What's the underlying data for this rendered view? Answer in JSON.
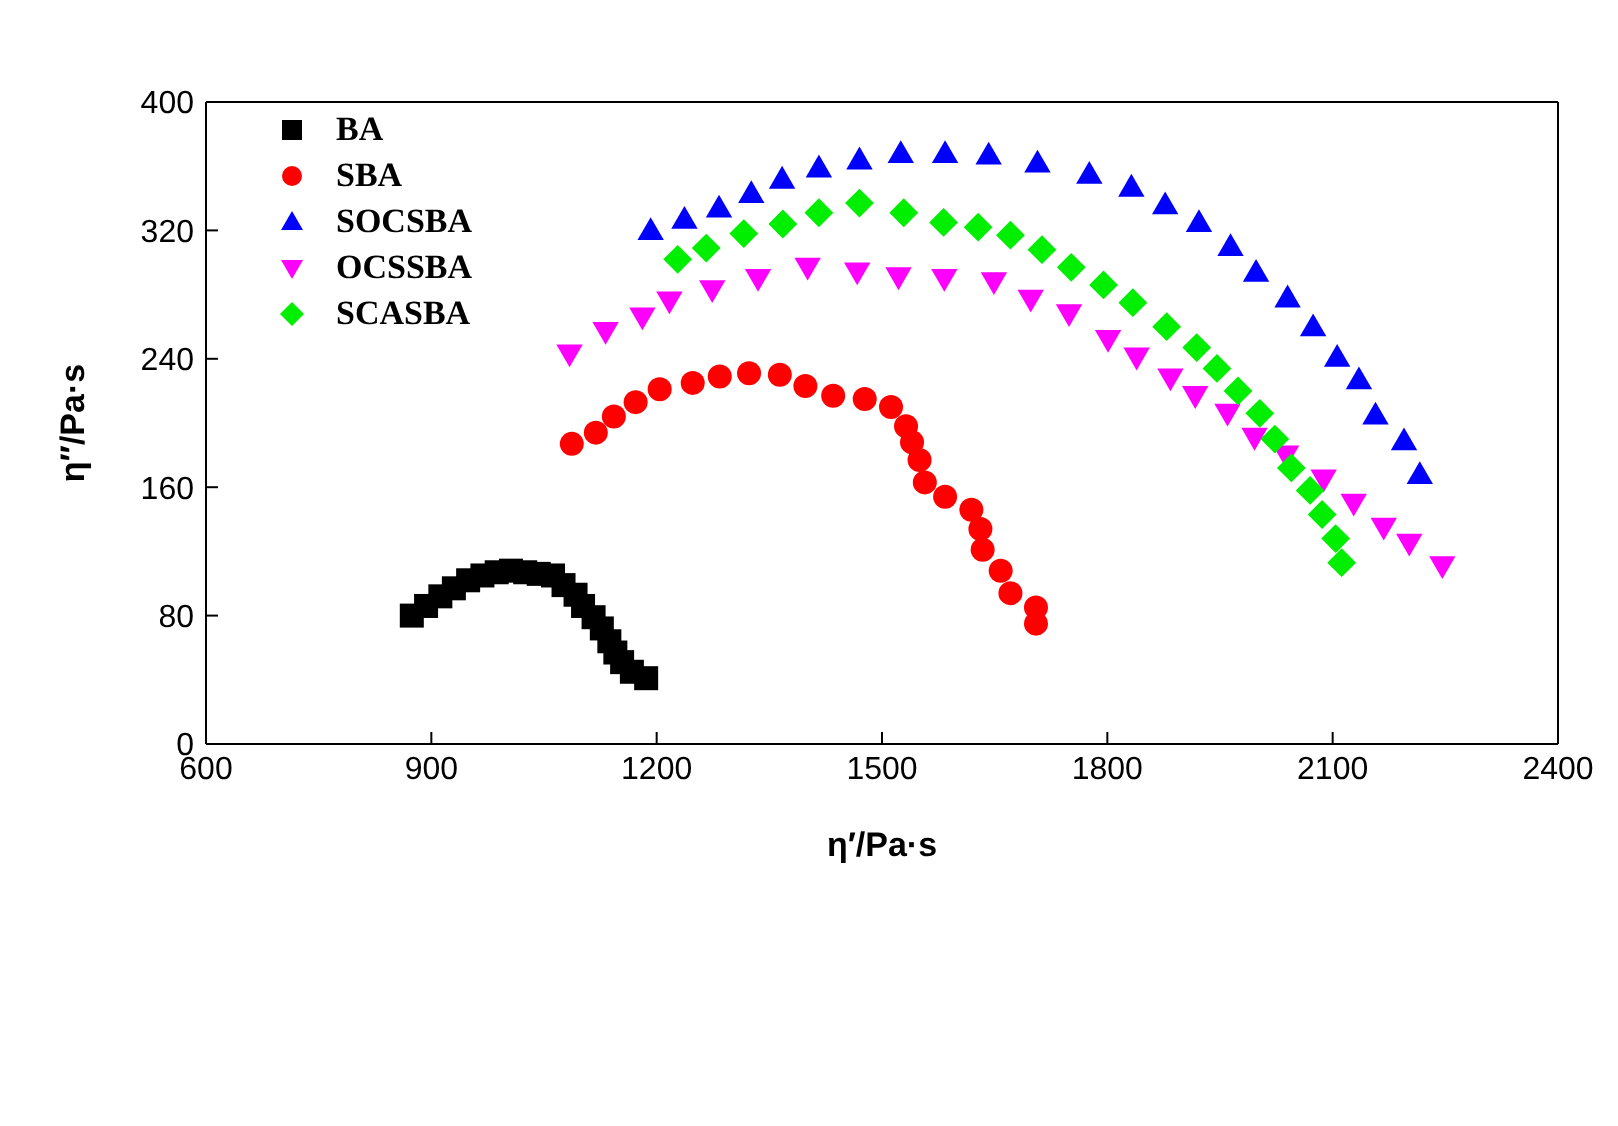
{
  "chart_data": {
    "type": "scatter",
    "xlabel": "η′/Pa·s",
    "ylabel": "η″/Pa·s",
    "xlim": [
      600,
      2400
    ],
    "xticks": [
      600,
      900,
      1200,
      1500,
      1800,
      2100,
      2400
    ],
    "ylim": [
      0,
      400
    ],
    "yticks": [
      0,
      80,
      160,
      240,
      320,
      400
    ],
    "legend": "top left",
    "series": [
      {
        "name": "BA",
        "color": "#000000",
        "marker": "square",
        "x": [
          874,
          893,
          912,
          930,
          949,
          968,
          987,
          1006,
          1025,
          1043,
          1062,
          1076,
          1092,
          1102,
          1116,
          1127,
          1137,
          1145,
          1154,
          1167,
          1186
        ],
        "values": [
          80,
          86,
          92,
          97,
          102,
          105,
          107,
          108,
          107,
          106,
          105,
          99,
          93,
          86,
          79,
          72,
          64,
          57,
          51,
          45,
          41
        ]
      },
      {
        "name": "SBA",
        "color": "#ff0000",
        "marker": "circle",
        "x": [
          1087,
          1119,
          1143,
          1172,
          1204,
          1248,
          1284,
          1323,
          1364,
          1398,
          1435,
          1477,
          1512,
          1532,
          1540,
          1550,
          1557,
          1584,
          1619,
          1631,
          1634,
          1658,
          1671,
          1705,
          1705
        ],
        "values": [
          187,
          194,
          204,
          213,
          221,
          225,
          229,
          231,
          230,
          223,
          217,
          215,
          210,
          198,
          188,
          177,
          163,
          154,
          146,
          134,
          121,
          108,
          94,
          85,
          75
        ]
      },
      {
        "name": "SOCSBA",
        "color": "#0000ff",
        "marker": "triangle",
        "x": [
          1192,
          1237,
          1283,
          1326,
          1367,
          1416,
          1470,
          1525,
          1584,
          1642,
          1707,
          1776,
          1832,
          1877,
          1922,
          1964,
          1998,
          2040,
          2074,
          2106,
          2135,
          2157,
          2195,
          2216
        ],
        "values": [
          320,
          327,
          334,
          343,
          352,
          359,
          364,
          368,
          368,
          367,
          362,
          355,
          347,
          336,
          325,
          310,
          294,
          278,
          260,
          241,
          227,
          205,
          189,
          168
        ]
      },
      {
        "name": "OCSSBA",
        "color": "#ff00ff",
        "marker": "triangle-down",
        "x": [
          1084,
          1132,
          1181,
          1217,
          1274,
          1335,
          1401,
          1467,
          1522,
          1583,
          1649,
          1698,
          1749,
          1801,
          1839,
          1884,
          1917,
          1960,
          1996,
          2038,
          2088,
          2128,
          2168,
          2202,
          2246
        ],
        "values": [
          243,
          257,
          266,
          276,
          283,
          290,
          297,
          294,
          291,
          290,
          288,
          277,
          268,
          252,
          241,
          228,
          217,
          206,
          191,
          180,
          165,
          150,
          135,
          125,
          111
        ]
      },
      {
        "name": "SCASBA",
        "color": "#00ee00",
        "marker": "diamond",
        "x": [
          1228,
          1266,
          1316,
          1368,
          1416,
          1470,
          1529,
          1582,
          1628,
          1671,
          1713,
          1752,
          1795,
          1834,
          1879,
          1919,
          1946,
          1974,
          2003,
          2023,
          2045,
          2070,
          2086,
          2104,
          2112
        ],
        "values": [
          302,
          309,
          318,
          324,
          331,
          337,
          331,
          325,
          322,
          317,
          308,
          297,
          286,
          275,
          260,
          247,
          234,
          220,
          206,
          190,
          172,
          158,
          143,
          128,
          113
        ]
      }
    ]
  }
}
